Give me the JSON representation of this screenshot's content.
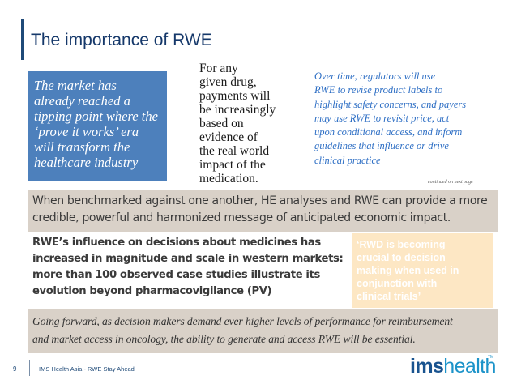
{
  "slide": {
    "title": "The importance of RWE",
    "quote_box": [
      "The market has",
      "already reached a",
      "tipping point where the",
      "‘prove it works’ era",
      "will transform the",
      "healthcare industry"
    ],
    "drug_payments": [
      "For any",
      "given drug,",
      "payments will",
      "be increasingly",
      "based on",
      "evidence of",
      "the real world",
      "impact of the",
      "medication."
    ],
    "regulators": [
      "Over time, regulators will use",
      "RWE to revise product labels to",
      "highlight safety concerns, and payers",
      "may use RWE to revisit price, act",
      "upon conditional access, and inform",
      "guidelines that influence or drive",
      "clinical practice"
    ],
    "continued_note": "continued on next page",
    "benchmark": [
      "When benchmarked against one another, HE analyses and RWE can provide a more",
      "credible, powerful and harmonized message of anticipated economic impact."
    ],
    "influence": [
      "RWE’s influence on decisions about medicines has",
      "increased in magnitude and scale in western markets:",
      "more than 100 observed case studies illustrate its",
      "evolution beyond pharmacovigilance (PV)"
    ],
    "rwd_quote": [
      "‘RWD is becoming",
      "crucial to decision",
      "making when used in",
      "conjunction with",
      "clinical trials’"
    ],
    "forward": [
      "Going forward, as decision makers demand ever higher levels of performance for reimbursement",
      "and market access in oncology, the ability to generate and access RWE will be essential."
    ]
  },
  "footer": {
    "page_number": "9",
    "text": "IMS Health Asia - RWE Stay Ahead",
    "logo_ims": "ims",
    "logo_health": "health",
    "logo_tm": "TM"
  },
  "colors": {
    "title": "#15386a",
    "quote_box_bg": "#4d80bc",
    "regulator_text": "#2d6ec4",
    "banner_bg": "#d9d1c8",
    "rwd_box_bg": "#fde7c4"
  }
}
